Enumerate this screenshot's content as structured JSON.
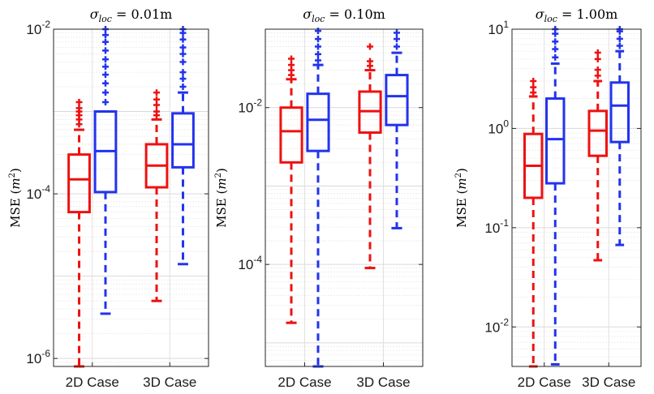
{
  "chart_data": [
    {
      "type": "box",
      "title": "σloc = 0.01m",
      "title_parts": {
        "prefix": "σ",
        "sub": "loc",
        "suffix": " = 0.01m"
      },
      "ylabel": "MSE (m²)",
      "ylabel_parts": {
        "prefix": "MSE (",
        "var": "m",
        "sup": "2",
        "suffix": ")"
      },
      "yscale": "log",
      "ylim": [
        8e-07,
        0.01
      ],
      "yticks": [
        {
          "value": 1e-06,
          "base": "10",
          "exp": "-6"
        },
        {
          "value": 0.0001,
          "base": "10",
          "exp": "-4"
        },
        {
          "value": 0.01,
          "base": "10",
          "exp": "-2"
        }
      ],
      "grid": true,
      "categories": [
        "2D Case",
        "3D Case"
      ],
      "series": [
        {
          "color": "#ee1111",
          "boxes": [
            {
              "whislo": 8e-07,
              "q1": 6e-05,
              "median": 0.00015,
              "q3": 0.0003,
              "whishi": 0.0006,
              "outliers": [
                0.0007,
                0.0008,
                0.0009,
                0.001,
                0.0011,
                0.0013
              ]
            },
            {
              "whislo": 5e-06,
              "q1": 0.00012,
              "median": 0.00022,
              "q3": 0.0004,
              "whishi": 0.0008,
              "outliers": [
                0.0009,
                0.001,
                0.0012,
                0.0014,
                0.0017
              ]
            }
          ]
        },
        {
          "color": "#2233ee",
          "boxes": [
            {
              "whislo": 3.5e-06,
              "q1": 0.000105,
              "median": 0.00033,
              "q3": 0.001,
              "whishi": 0.001,
              "outliers": [
                0.0013,
                0.0017,
                0.0022,
                0.0028,
                0.0035,
                0.0043,
                0.0055,
                0.007,
                0.0085,
                0.01
              ]
            },
            {
              "whislo": 1.4e-05,
              "q1": 0.00021,
              "median": 0.0004,
              "q3": 0.00095,
              "whishi": 0.0017,
              "outliers": [
                0.002,
                0.0025,
                0.003,
                0.004,
                0.005,
                0.006,
                0.0075,
                0.009,
                0.01
              ]
            }
          ]
        }
      ]
    },
    {
      "type": "box",
      "title": "σloc = 0.10m",
      "title_parts": {
        "prefix": "σ",
        "sub": "loc",
        "suffix": " = 0.10m"
      },
      "ylabel": "MSE (m²)",
      "ylabel_parts": {
        "prefix": "MSE (",
        "var": "m",
        "sup": "2",
        "suffix": ")"
      },
      "yscale": "log",
      "ylim": [
        5e-06,
        0.1
      ],
      "yticks": [
        {
          "value": 0.0001,
          "base": "10",
          "exp": "-4"
        },
        {
          "value": 0.01,
          "base": "10",
          "exp": "-2"
        }
      ],
      "grid": true,
      "categories": [
        "2D Case",
        "3D Case"
      ],
      "series": [
        {
          "color": "#ee1111",
          "boxes": [
            {
              "whislo": 1.8e-05,
              "q1": 0.002,
              "median": 0.005,
              "q3": 0.01,
              "whishi": 0.023,
              "outliers": [
                0.026,
                0.03,
                0.035,
                0.042
              ]
            },
            {
              "whislo": 9e-05,
              "q1": 0.0048,
              "median": 0.009,
              "q3": 0.016,
              "whishi": 0.03,
              "outliers": [
                0.034,
                0.039,
                0.06
              ]
            }
          ]
        },
        {
          "color": "#2233ee",
          "boxes": [
            {
              "whislo": 5e-06,
              "q1": 0.0028,
              "median": 0.007,
              "q3": 0.015,
              "whishi": 0.035,
              "outliers": [
                0.04,
                0.048,
                0.06,
                0.075,
                0.095
              ]
            },
            {
              "whislo": 0.00029,
              "q1": 0.006,
              "median": 0.014,
              "q3": 0.026,
              "whishi": 0.05,
              "outliers": [
                0.06,
                0.075,
                0.09
              ]
            }
          ]
        }
      ]
    },
    {
      "type": "box",
      "title": "σloc = 1.00m",
      "title_parts": {
        "prefix": "σ",
        "sub": "loc",
        "suffix": " = 1.00m"
      },
      "ylabel": "MSE (m²)",
      "ylabel_parts": {
        "prefix": "MSE (",
        "var": "m",
        "sup": "2",
        "suffix": ")"
      },
      "yscale": "log",
      "ylim": [
        0.004,
        10
      ],
      "yticks": [
        {
          "value": 0.01,
          "base": "10",
          "exp": "-2"
        },
        {
          "value": 0.1,
          "base": "10",
          "exp": "-1"
        },
        {
          "value": 1,
          "base": "10",
          "exp": "0"
        },
        {
          "value": 10,
          "base": "10",
          "exp": "1"
        }
      ],
      "grid": true,
      "categories": [
        "2D Case",
        "3D Case"
      ],
      "series": [
        {
          "color": "#ee1111",
          "boxes": [
            {
              "whislo": 0.004,
              "q1": 0.2,
              "median": 0.42,
              "q3": 0.88,
              "whishi": 2.1,
              "outliers": [
                2.3,
                2.6,
                3.0
              ]
            },
            {
              "whislo": 0.047,
              "q1": 0.53,
              "median": 0.95,
              "q3": 1.5,
              "whishi": 3.0,
              "outliers": [
                3.4,
                3.9,
                5.0,
                5.8
              ]
            }
          ]
        },
        {
          "color": "#2233ee",
          "boxes": [
            {
              "whislo": 0.0042,
              "q1": 0.28,
              "median": 0.78,
              "q3": 2.0,
              "whishi": 4.5,
              "outliers": [
                5.2,
                6.3,
                7.5,
                9,
                10
              ]
            },
            {
              "whislo": 0.067,
              "q1": 0.73,
              "median": 1.7,
              "q3": 2.9,
              "whishi": 6.0,
              "outliers": [
                6.8,
                8,
                9.5,
                10
              ]
            }
          ]
        }
      ]
    }
  ]
}
